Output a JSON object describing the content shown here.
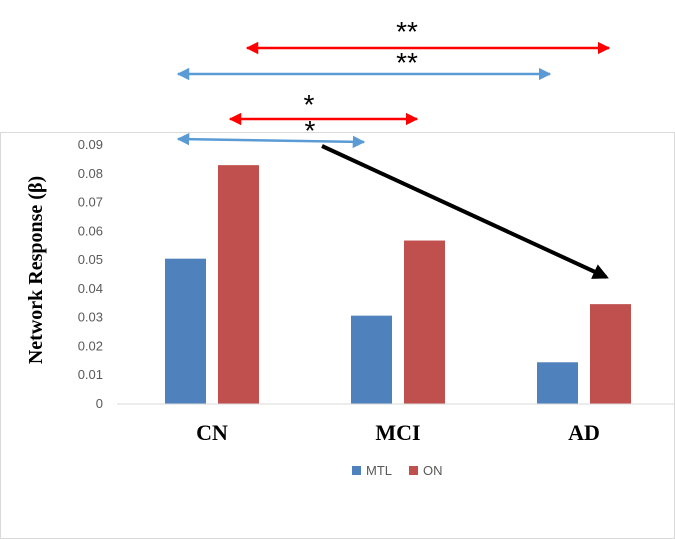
{
  "chart_data": {
    "type": "bar",
    "ylabel": "Network Response (β)",
    "categories": [
      "CN",
      "MCI",
      "AD"
    ],
    "series": [
      {
        "name": "MTL",
        "color": "#4f81bd",
        "values": [
          0.0505,
          0.0307,
          0.0145
        ]
      },
      {
        "name": "ON",
        "color": "#c0504d",
        "values": [
          0.083,
          0.0568,
          0.0347
        ]
      }
    ],
    "ylim": [
      0,
      0.09
    ],
    "yticks": [
      "0",
      "0.01",
      "0.02",
      "0.03",
      "0.04",
      "0.05",
      "0.06",
      "0.07",
      "0.08",
      "0.09"
    ],
    "grid": false,
    "legend_position": "bottom",
    "annotations": [
      {
        "label": "**",
        "color": "#ff0000",
        "from": "CN",
        "to": "AD",
        "series": "ON"
      },
      {
        "label": "**",
        "color": "#5b9bd5",
        "from": "CN",
        "to": "AD",
        "series": "MTL"
      },
      {
        "label": "*",
        "color": "#ff0000",
        "from": "CN",
        "to": "MCI",
        "series": "ON"
      },
      {
        "label": "*",
        "color": "#5b9bd5",
        "from": "CN",
        "to": "MCI",
        "series": "MTL"
      }
    ],
    "trend_arrow": {
      "color": "#000000",
      "from": "CN",
      "to": "AD"
    }
  }
}
